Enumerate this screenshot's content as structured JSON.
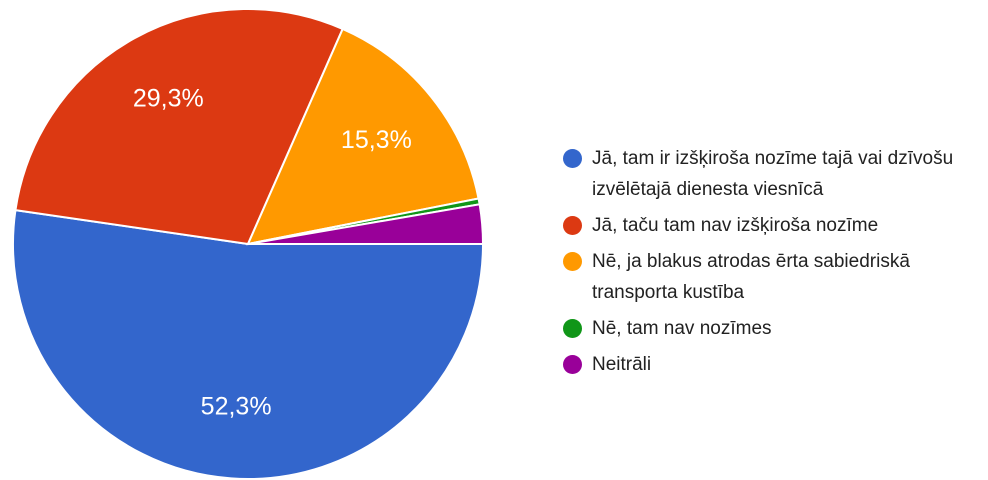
{
  "chart_data": {
    "type": "pie",
    "categories": [
      "Jā, tam ir izšķiroša nozīme tajā vai dzīvošu izvēlētajā dienesta viesnīcā",
      "Jā, taču tam nav izšķiroša nozīme",
      "Nē, ja blakus atrodas ērta sabiedriskā transporta kustība",
      "Nē, tam nav nozīmes",
      "Neitrāli"
    ],
    "values": [
      52.3,
      29.3,
      15.3,
      0.4,
      2.7
    ],
    "value_labels": [
      "52,3%",
      "29,3%",
      "15,3%",
      null,
      null
    ],
    "colors": [
      "#3366cc",
      "#dc3912",
      "#ff9900",
      "#109618",
      "#990099"
    ],
    "legend": "right"
  }
}
